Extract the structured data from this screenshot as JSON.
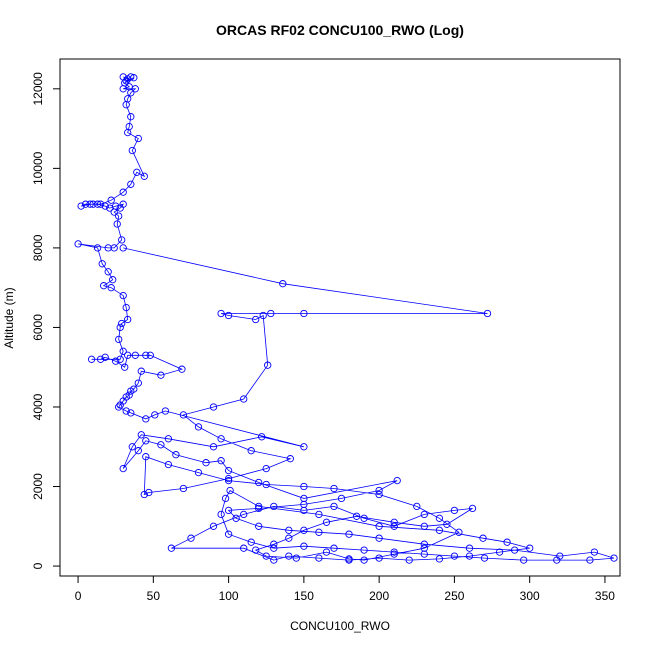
{
  "chart_data": {
    "type": "line",
    "title": "ORCAS RF02 CONCU100_RWO (Log)",
    "xlabel": "CONCU100_RWO",
    "ylabel": "Altitude (m)",
    "xlim": [
      -12,
      360
    ],
    "ylim": [
      -250,
      12750
    ],
    "x_ticks": [
      "0",
      "50",
      "100",
      "150",
      "200",
      "250",
      "300",
      "350"
    ],
    "y_ticks": [
      "0",
      "2000",
      "4000",
      "6000",
      "8000",
      "10000",
      "12000"
    ],
    "grid": false,
    "marker": "open-circle",
    "colors": {
      "series": "#0000ff",
      "axes": "#000000",
      "background": "#ffffff"
    },
    "series": [
      {
        "points": [
          [
            30,
            12300
          ],
          [
            33,
            12250
          ],
          [
            35,
            12300
          ],
          [
            32,
            12200
          ],
          [
            37,
            12280
          ],
          [
            31,
            12150
          ],
          [
            34,
            12050
          ],
          [
            30,
            12000
          ],
          [
            38,
            12000
          ],
          [
            35,
            11900
          ],
          [
            33,
            11750
          ],
          [
            32,
            11600
          ],
          [
            35,
            11300
          ],
          [
            34,
            11050
          ],
          [
            33,
            10900
          ],
          [
            40,
            10750
          ],
          [
            36,
            10450
          ],
          [
            44,
            9800
          ],
          [
            39,
            9900
          ],
          [
            35,
            9600
          ],
          [
            30,
            9400
          ],
          [
            22,
            9200
          ],
          [
            15,
            9100
          ],
          [
            10,
            9100
          ],
          [
            5,
            9100
          ],
          [
            2,
            9050
          ],
          [
            8,
            9100
          ],
          [
            13,
            9100
          ],
          [
            18,
            9050
          ],
          [
            21,
            9000
          ],
          [
            25,
            9050
          ],
          [
            30,
            9100
          ],
          [
            28,
            9000
          ],
          [
            24,
            8900
          ],
          [
            27,
            8800
          ],
          [
            26,
            8600
          ],
          [
            29,
            8200
          ],
          [
            24,
            8000
          ],
          [
            20,
            8000
          ],
          [
            0,
            8100
          ],
          [
            13,
            8000
          ],
          [
            16,
            7600
          ],
          [
            20,
            7400
          ],
          [
            23,
            7200
          ],
          [
            17,
            7050
          ],
          [
            22,
            7000
          ],
          [
            30,
            6800
          ],
          [
            32,
            6500
          ],
          [
            33,
            6200
          ],
          [
            29,
            6100
          ],
          [
            28,
            6000
          ],
          [
            27,
            5700
          ],
          [
            30,
            5400
          ],
          [
            28,
            5200
          ],
          [
            9,
            5200
          ],
          [
            15,
            5200
          ],
          [
            18,
            5250
          ],
          [
            25,
            5150
          ],
          [
            31,
            5000
          ],
          [
            33,
            5300
          ],
          [
            38,
            5300
          ],
          [
            45,
            5300
          ],
          [
            48,
            5300
          ],
          [
            69,
            4950
          ],
          [
            55,
            4800
          ],
          [
            42,
            4900
          ],
          [
            40,
            4600
          ],
          [
            37,
            4450
          ],
          [
            35,
            4400
          ],
          [
            34,
            4300
          ],
          [
            32,
            4250
          ],
          [
            30,
            4150
          ],
          [
            28,
            4050
          ],
          [
            27,
            4000
          ],
          [
            32,
            3900
          ],
          [
            35,
            3850
          ],
          [
            45,
            3700
          ],
          [
            51,
            3800
          ],
          [
            58,
            3900
          ],
          [
            150,
            3000
          ],
          [
            122,
            3250
          ],
          [
            90,
            3000
          ],
          [
            60,
            3200
          ],
          [
            42,
            3300
          ],
          [
            36,
            3000
          ],
          [
            30,
            2450
          ],
          [
            40,
            2900
          ],
          [
            45,
            3150
          ],
          [
            55,
            3050
          ],
          [
            65,
            2800
          ],
          [
            85,
            2600
          ],
          [
            95,
            2650
          ],
          [
            100,
            2400
          ],
          [
            120,
            2100
          ],
          [
            150,
            1700
          ],
          [
            212,
            2150
          ],
          [
            200,
            1900
          ],
          [
            175,
            1700
          ],
          [
            150,
            1550
          ],
          [
            120,
            1450
          ],
          [
            100,
            1400
          ],
          [
            105,
            1200
          ],
          [
            120,
            1000
          ],
          [
            140,
            900
          ],
          [
            160,
            850
          ],
          [
            180,
            800
          ],
          [
            200,
            700
          ],
          [
            230,
            550
          ],
          [
            260,
            450
          ],
          [
            290,
            400
          ],
          [
            320,
            250
          ],
          [
            343,
            350
          ],
          [
            356,
            200
          ],
          [
            340,
            150
          ],
          [
            318,
            150
          ],
          [
            296,
            150
          ],
          [
            270,
            200
          ],
          [
            250,
            250
          ],
          [
            230,
            300
          ],
          [
            210,
            350
          ],
          [
            190,
            400
          ],
          [
            170,
            450
          ],
          [
            150,
            500
          ],
          [
            130,
            450
          ],
          [
            115,
            600
          ],
          [
            100,
            800
          ],
          [
            95,
            1300
          ],
          [
            98,
            1700
          ],
          [
            101,
            1900
          ],
          [
            120,
            1500
          ],
          [
            160,
            1300
          ],
          [
            200,
            1000
          ],
          [
            240,
            900
          ],
          [
            269,
            700
          ],
          [
            285,
            600
          ],
          [
            300,
            450
          ],
          [
            280,
            350
          ],
          [
            260,
            250
          ],
          [
            240,
            180
          ],
          [
            220,
            150
          ],
          [
            200,
            200
          ],
          [
            180,
            150
          ],
          [
            160,
            200
          ],
          [
            140,
            250
          ],
          [
            130,
            150
          ],
          [
            110,
            450
          ],
          [
            62,
            450
          ],
          [
            75,
            700
          ],
          [
            90,
            1000
          ],
          [
            110,
            1300
          ],
          [
            130,
            1500
          ],
          [
            150,
            1400
          ],
          [
            170,
            1500
          ],
          [
            190,
            1200
          ],
          [
            210,
            1000
          ],
          [
            230,
            1300
          ],
          [
            250,
            1400
          ],
          [
            262,
            1450
          ],
          [
            245,
            1050
          ],
          [
            230,
            1000
          ],
          [
            210,
            1100
          ],
          [
            185,
            1250
          ],
          [
            165,
            1100
          ],
          [
            150,
            900
          ],
          [
            140,
            700
          ],
          [
            130,
            550
          ],
          [
            118,
            400
          ],
          [
            125,
            250
          ],
          [
            145,
            200
          ],
          [
            165,
            350
          ],
          [
            180,
            180
          ],
          [
            190,
            150
          ],
          [
            210,
            300
          ],
          [
            230,
            450
          ],
          [
            253,
            850
          ],
          [
            240,
            1200
          ],
          [
            225,
            1500
          ],
          [
            200,
            1800
          ],
          [
            170,
            1950
          ],
          [
            150,
            2000
          ],
          [
            125,
            2050
          ],
          [
            100,
            2150
          ],
          [
            80,
            2350
          ],
          [
            60,
            2550
          ],
          [
            45,
            2750
          ],
          [
            44,
            1800
          ],
          [
            47,
            1850
          ],
          [
            70,
            1950
          ],
          [
            100,
            2200
          ],
          [
            125,
            2450
          ],
          [
            141,
            2700
          ],
          [
            115,
            2900
          ],
          [
            95,
            3200
          ],
          [
            80,
            3500
          ],
          [
            70,
            3800
          ],
          [
            90,
            4000
          ],
          [
            110,
            4200
          ],
          [
            126,
            5050
          ],
          [
            123,
            6300
          ],
          [
            118,
            6200
          ],
          [
            100,
            6300
          ],
          [
            95,
            6350
          ],
          [
            128,
            6350
          ],
          [
            150,
            6350
          ],
          [
            272,
            6350
          ],
          [
            136,
            7100
          ],
          [
            30,
            8000
          ]
        ]
      }
    ]
  }
}
